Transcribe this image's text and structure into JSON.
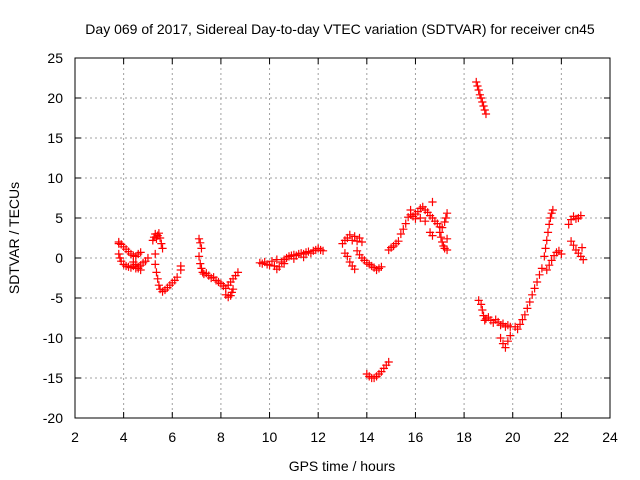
{
  "chart_data": {
    "type": "scatter",
    "title": "Day 069 of 2017, Sidereal Day-to-day VTEC variation (SDTVAR) for receiver cn45",
    "xlabel": "GPS time / hours",
    "ylabel": "SDTVAR / TECUs",
    "xlim": [
      2,
      24
    ],
    "ylim": [
      -20,
      25
    ],
    "xticks": [
      2,
      4,
      6,
      8,
      10,
      12,
      14,
      16,
      18,
      20,
      22,
      24
    ],
    "yticks": [
      25,
      20,
      15,
      10,
      5,
      0,
      -5,
      -10,
      -15,
      -20
    ],
    "xtick_labels": [
      "2",
      "4",
      "6",
      "8",
      "10",
      "12",
      "14",
      "16",
      "18",
      "20",
      "22",
      "24"
    ],
    "ytick_labels": [
      "25",
      "20",
      "15",
      "10",
      "5",
      "0",
      "-5",
      "-10",
      "-15",
      "-20"
    ],
    "grid": true,
    "marker": "+",
    "marker_color": "#ff0000",
    "series": [
      {
        "name": "SDTVAR",
        "points": [
          [
            3.8,
            1.8
          ],
          [
            3.8,
            0.5
          ],
          [
            3.85,
            0.0
          ],
          [
            3.9,
            -0.4
          ],
          [
            4.0,
            -0.8
          ],
          [
            4.1,
            -1.0
          ],
          [
            4.2,
            -1.1
          ],
          [
            4.3,
            -1.2
          ],
          [
            4.4,
            -1.0
          ],
          [
            4.5,
            -1.3
          ],
          [
            4.6,
            -1.1
          ],
          [
            4.7,
            -0.9
          ],
          [
            4.8,
            -0.6
          ],
          [
            4.9,
            -0.4
          ],
          [
            5.0,
            0.0
          ],
          [
            3.8,
            2.0
          ],
          [
            3.9,
            1.7
          ],
          [
            4.0,
            1.4
          ],
          [
            4.1,
            1.1
          ],
          [
            4.2,
            0.8
          ],
          [
            4.3,
            0.5
          ],
          [
            4.4,
            0.3
          ],
          [
            4.5,
            0.2
          ],
          [
            4.6,
            0.5
          ],
          [
            4.7,
            0.7
          ],
          [
            4.4,
            -0.5
          ],
          [
            4.5,
            -0.8
          ],
          [
            4.6,
            -1.3
          ],
          [
            4.7,
            -1.5
          ],
          [
            5.2,
            2.2
          ],
          [
            5.25,
            2.6
          ],
          [
            5.3,
            3.0
          ],
          [
            5.35,
            2.4
          ],
          [
            5.4,
            2.8
          ],
          [
            5.45,
            3.1
          ],
          [
            5.5,
            2.5
          ],
          [
            5.55,
            1.8
          ],
          [
            5.6,
            1.2
          ],
          [
            5.3,
            0.5
          ],
          [
            5.3,
            -0.8
          ],
          [
            5.35,
            -1.8
          ],
          [
            5.4,
            -2.6
          ],
          [
            5.45,
            -3.4
          ],
          [
            5.5,
            -3.9
          ],
          [
            5.6,
            -4.2
          ],
          [
            5.7,
            -4.0
          ],
          [
            5.8,
            -3.7
          ],
          [
            5.9,
            -3.4
          ],
          [
            6.0,
            -3.1
          ],
          [
            6.1,
            -2.8
          ],
          [
            6.2,
            -2.4
          ],
          [
            6.35,
            -1.0
          ],
          [
            6.35,
            -1.5
          ],
          [
            7.1,
            2.4
          ],
          [
            7.15,
            1.9
          ],
          [
            7.2,
            1.2
          ],
          [
            7.1,
            0.2
          ],
          [
            7.15,
            -0.7
          ],
          [
            7.2,
            -1.3
          ],
          [
            7.25,
            -1.8
          ],
          [
            7.3,
            -2.0
          ],
          [
            7.4,
            -1.9
          ],
          [
            7.5,
            -2.2
          ],
          [
            7.6,
            -2.5
          ],
          [
            7.7,
            -2.4
          ],
          [
            7.8,
            -2.8
          ],
          [
            7.9,
            -3.0
          ],
          [
            8.0,
            -3.2
          ],
          [
            8.1,
            -3.5
          ],
          [
            8.2,
            -3.8
          ],
          [
            8.3,
            -3.4
          ],
          [
            8.4,
            -3.0
          ],
          [
            8.5,
            -2.6
          ],
          [
            8.6,
            -2.2
          ],
          [
            8.7,
            -1.8
          ],
          [
            8.2,
            -4.6
          ],
          [
            8.3,
            -4.9
          ],
          [
            8.4,
            -4.7
          ],
          [
            8.45,
            -4.3
          ],
          [
            8.5,
            -3.9
          ],
          [
            9.6,
            -0.6
          ],
          [
            9.7,
            -0.7
          ],
          [
            9.8,
            -0.5
          ],
          [
            9.9,
            -0.8
          ],
          [
            10.0,
            -0.9
          ],
          [
            10.1,
            -0.4
          ],
          [
            10.2,
            -1.0
          ],
          [
            10.3,
            -1.4
          ],
          [
            10.4,
            -1.1
          ],
          [
            10.5,
            -0.5
          ],
          [
            10.6,
            -0.2
          ],
          [
            10.7,
            0.0
          ],
          [
            10.8,
            0.2
          ],
          [
            10.9,
            0.3
          ],
          [
            11.0,
            0.4
          ],
          [
            11.1,
            0.3
          ],
          [
            11.2,
            0.5
          ],
          [
            11.3,
            0.6
          ],
          [
            11.4,
            0.5
          ],
          [
            11.5,
            0.7
          ],
          [
            11.6,
            0.8
          ],
          [
            11.7,
            0.6
          ],
          [
            11.8,
            0.9
          ],
          [
            11.9,
            1.0
          ],
          [
            12.0,
            1.2
          ],
          [
            12.1,
            1.0
          ],
          [
            12.2,
            0.9
          ],
          [
            10.3,
            -0.2
          ],
          [
            10.6,
            -0.7
          ],
          [
            11.0,
            -0.1
          ],
          [
            11.4,
            0.1
          ],
          [
            13.0,
            1.8
          ],
          [
            13.1,
            2.2
          ],
          [
            13.2,
            2.5
          ],
          [
            13.3,
            2.9
          ],
          [
            13.4,
            2.2
          ],
          [
            13.5,
            2.7
          ],
          [
            13.6,
            2.1
          ],
          [
            13.7,
            2.5
          ],
          [
            13.8,
            2.0
          ],
          [
            13.1,
            0.6
          ],
          [
            13.2,
            0.2
          ],
          [
            13.3,
            -0.5
          ],
          [
            13.4,
            -1.0
          ],
          [
            13.5,
            -1.4
          ],
          [
            13.6,
            0.9
          ],
          [
            13.7,
            0.4
          ],
          [
            13.8,
            0.0
          ],
          [
            13.9,
            -0.3
          ],
          [
            14.0,
            -0.6
          ],
          [
            14.1,
            -0.8
          ],
          [
            14.2,
            -1.0
          ],
          [
            14.3,
            -1.2
          ],
          [
            14.4,
            -1.5
          ],
          [
            14.5,
            -1.3
          ],
          [
            14.6,
            -1.1
          ],
          [
            14.0,
            -14.5
          ],
          [
            14.1,
            -14.8
          ],
          [
            14.2,
            -15.0
          ],
          [
            14.3,
            -15.0
          ],
          [
            14.4,
            -14.8
          ],
          [
            14.5,
            -14.5
          ],
          [
            14.6,
            -14.2
          ],
          [
            14.7,
            -13.8
          ],
          [
            14.8,
            -13.4
          ],
          [
            14.9,
            -13.0
          ],
          [
            14.9,
            1.0
          ],
          [
            15.0,
            1.3
          ],
          [
            15.1,
            1.5
          ],
          [
            15.2,
            1.8
          ],
          [
            15.3,
            2.1
          ],
          [
            15.4,
            3.0
          ],
          [
            15.5,
            3.6
          ],
          [
            15.6,
            4.3
          ],
          [
            15.7,
            5.1
          ],
          [
            15.8,
            5.4
          ],
          [
            15.9,
            5.2
          ],
          [
            16.0,
            5.5
          ],
          [
            16.1,
            5.8
          ],
          [
            16.2,
            6.2
          ],
          [
            16.3,
            6.4
          ],
          [
            16.4,
            6.0
          ],
          [
            16.5,
            5.7
          ],
          [
            16.6,
            5.3
          ],
          [
            16.7,
            5.0
          ],
          [
            16.8,
            4.6
          ],
          [
            16.9,
            4.3
          ],
          [
            17.0,
            3.9
          ],
          [
            16.7,
            7.0
          ],
          [
            16.6,
            3.2
          ],
          [
            16.7,
            2.8
          ],
          [
            15.8,
            6.0
          ],
          [
            16.0,
            4.9
          ],
          [
            16.2,
            5.0
          ],
          [
            16.4,
            4.6
          ],
          [
            17.0,
            3.2
          ],
          [
            17.05,
            2.6
          ],
          [
            17.1,
            2.0
          ],
          [
            17.15,
            1.5
          ],
          [
            17.2,
            1.2
          ],
          [
            17.25,
            5.0
          ],
          [
            17.3,
            5.6
          ],
          [
            17.1,
            3.8
          ],
          [
            17.2,
            4.5
          ],
          [
            17.3,
            2.4
          ],
          [
            17.3,
            1.0
          ],
          [
            18.5,
            22.0
          ],
          [
            18.55,
            21.5
          ],
          [
            18.6,
            21.0
          ],
          [
            18.65,
            20.4
          ],
          [
            18.7,
            20.0
          ],
          [
            18.75,
            19.5
          ],
          [
            18.8,
            19.0
          ],
          [
            18.85,
            18.5
          ],
          [
            18.9,
            18.0
          ],
          [
            18.6,
            -5.3
          ],
          [
            18.7,
            -5.8
          ],
          [
            18.75,
            -6.5
          ],
          [
            18.8,
            -7.2
          ],
          [
            18.85,
            -7.8
          ],
          [
            18.9,
            -7.6
          ],
          [
            19.0,
            -7.4
          ],
          [
            19.1,
            -7.8
          ],
          [
            19.2,
            -8.1
          ],
          [
            19.3,
            -7.7
          ],
          [
            19.4,
            -8.0
          ],
          [
            19.5,
            -8.4
          ],
          [
            19.6,
            -8.2
          ],
          [
            19.7,
            -8.6
          ],
          [
            19.8,
            -8.4
          ],
          [
            19.9,
            -8.6
          ],
          [
            19.5,
            -10.0
          ],
          [
            19.6,
            -10.7
          ],
          [
            19.7,
            -11.2
          ],
          [
            19.8,
            -10.4
          ],
          [
            19.9,
            -9.7
          ],
          [
            20.1,
            -8.6
          ],
          [
            20.2,
            -8.9
          ],
          [
            20.3,
            -8.3
          ],
          [
            20.4,
            -7.7
          ],
          [
            20.5,
            -7.1
          ],
          [
            20.6,
            -6.3
          ],
          [
            20.7,
            -5.5
          ],
          [
            20.8,
            -4.6
          ],
          [
            20.9,
            -3.8
          ],
          [
            21.0,
            -3.0
          ],
          [
            21.1,
            -2.1
          ],
          [
            21.2,
            -1.3
          ],
          [
            21.3,
            0.2
          ],
          [
            21.35,
            1.2
          ],
          [
            21.4,
            2.2
          ],
          [
            21.45,
            3.2
          ],
          [
            21.5,
            4.2
          ],
          [
            21.55,
            5.0
          ],
          [
            21.6,
            5.6
          ],
          [
            21.65,
            6.0
          ],
          [
            21.4,
            -1.5
          ],
          [
            21.5,
            -0.9
          ],
          [
            21.6,
            -0.3
          ],
          [
            21.7,
            0.3
          ],
          [
            21.8,
            0.7
          ],
          [
            21.9,
            0.9
          ],
          [
            22.0,
            0.5
          ],
          [
            22.3,
            4.2
          ],
          [
            22.4,
            4.8
          ],
          [
            22.5,
            5.2
          ],
          [
            22.6,
            4.9
          ],
          [
            22.7,
            5.0
          ],
          [
            22.8,
            5.3
          ],
          [
            22.4,
            2.1
          ],
          [
            22.5,
            1.6
          ],
          [
            22.6,
            1.0
          ],
          [
            22.7,
            0.6
          ],
          [
            22.8,
            0.2
          ],
          [
            22.9,
            -0.2
          ],
          [
            22.85,
            1.3
          ]
        ]
      }
    ]
  }
}
